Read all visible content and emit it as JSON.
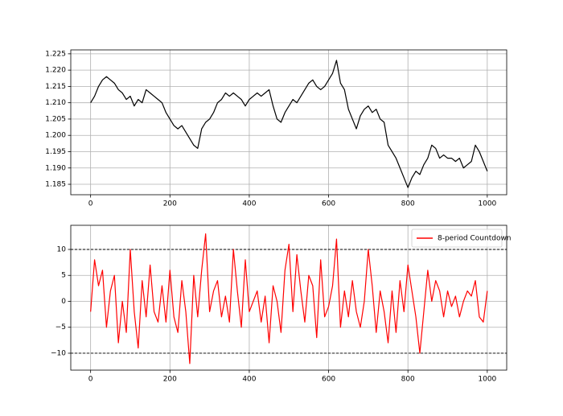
{
  "chart_data": [
    {
      "type": "line",
      "x": [
        0,
        10,
        20,
        30,
        40,
        50,
        60,
        70,
        80,
        90,
        100,
        110,
        120,
        130,
        140,
        150,
        160,
        170,
        180,
        190,
        200,
        210,
        220,
        230,
        240,
        250,
        260,
        270,
        280,
        290,
        300,
        310,
        320,
        330,
        340,
        350,
        360,
        370,
        380,
        390,
        400,
        410,
        420,
        430,
        440,
        450,
        460,
        470,
        480,
        490,
        500,
        510,
        520,
        530,
        540,
        550,
        560,
        570,
        580,
        590,
        600,
        610,
        620,
        630,
        640,
        650,
        660,
        670,
        680,
        690,
        700,
        710,
        720,
        730,
        740,
        750,
        760,
        770,
        780,
        790,
        800,
        810,
        820,
        830,
        840,
        850,
        860,
        870,
        880,
        890,
        900,
        910,
        920,
        930,
        940,
        950,
        960,
        970,
        980,
        990,
        1000
      ],
      "series": [
        {
          "color": "#000000",
          "values": [
            1.21,
            1.212,
            1.215,
            1.217,
            1.218,
            1.217,
            1.216,
            1.214,
            1.213,
            1.211,
            1.212,
            1.209,
            1.211,
            1.21,
            1.214,
            1.213,
            1.212,
            1.211,
            1.21,
            1.207,
            1.205,
            1.203,
            1.202,
            1.203,
            1.201,
            1.199,
            1.197,
            1.196,
            1.202,
            1.204,
            1.205,
            1.207,
            1.21,
            1.211,
            1.213,
            1.212,
            1.213,
            1.212,
            1.211,
            1.209,
            1.211,
            1.212,
            1.213,
            1.212,
            1.213,
            1.214,
            1.209,
            1.205,
            1.204,
            1.207,
            1.209,
            1.211,
            1.21,
            1.212,
            1.214,
            1.216,
            1.217,
            1.215,
            1.214,
            1.215,
            1.217,
            1.219,
            1.223,
            1.216,
            1.214,
            1.208,
            1.205,
            1.202,
            1.206,
            1.208,
            1.209,
            1.207,
            1.208,
            1.205,
            1.204,
            1.197,
            1.195,
            1.193,
            1.19,
            1.187,
            1.184,
            1.187,
            1.189,
            1.188,
            1.191,
            1.193,
            1.197,
            1.196,
            1.193,
            1.194,
            1.193,
            1.193,
            1.192,
            1.193,
            1.19,
            1.191,
            1.192,
            1.197,
            1.195,
            1.192,
            1.189
          ]
        }
      ],
      "xlim": [
        -50,
        1049
      ],
      "xticks": [
        0,
        200,
        400,
        600,
        800,
        1000
      ],
      "ylim": [
        1.1818,
        1.2262
      ],
      "yticks": [
        1.185,
        {
          "value": 1.19,
          "label": "1.190"
        },
        1.195,
        {
          "value": 1.2,
          "label": "1.200"
        },
        1.205,
        {
          "value": 1.21,
          "label": "1.210"
        },
        1.215,
        {
          "value": 1.22,
          "label": "1.220"
        },
        1.225
      ],
      "grid": true
    },
    {
      "type": "line",
      "x": [
        0,
        10,
        20,
        30,
        40,
        50,
        60,
        70,
        80,
        90,
        100,
        110,
        120,
        130,
        140,
        150,
        160,
        170,
        180,
        190,
        200,
        210,
        220,
        230,
        240,
        250,
        260,
        270,
        280,
        290,
        300,
        310,
        320,
        330,
        340,
        350,
        360,
        370,
        380,
        390,
        400,
        410,
        420,
        430,
        440,
        450,
        460,
        470,
        480,
        490,
        500,
        510,
        520,
        530,
        540,
        550,
        560,
        570,
        580,
        590,
        600,
        610,
        620,
        630,
        640,
        650,
        660,
        670,
        680,
        690,
        700,
        710,
        720,
        730,
        740,
        750,
        760,
        770,
        780,
        790,
        800,
        810,
        820,
        830,
        840,
        850,
        860,
        870,
        880,
        890,
        900,
        910,
        920,
        930,
        940,
        950,
        960,
        970,
        980,
        990,
        1000
      ],
      "series": [
        {
          "name": "8-period Countdown",
          "color": "#ff0000",
          "values": [
            -2,
            8,
            3,
            6,
            -5,
            2,
            5,
            -8,
            0,
            -6,
            10,
            -2,
            -9,
            4,
            -3,
            7,
            -2,
            -4,
            3,
            -4,
            6,
            -3,
            -6,
            4,
            -2,
            -12,
            5,
            -3,
            6,
            13,
            -2,
            2,
            4,
            -3,
            1,
            -4,
            10,
            2,
            -5,
            8,
            -2,
            0,
            2,
            -4,
            1,
            -8,
            3,
            0,
            -6,
            6,
            11,
            -2,
            9,
            2,
            -4,
            5,
            3,
            -7,
            8,
            -3,
            -1,
            3,
            12,
            -5,
            2,
            -3,
            4,
            -2,
            -5,
            0,
            10,
            3,
            -6,
            2,
            -2,
            -8,
            2,
            -6,
            4,
            -2,
            7,
            2,
            -3,
            -10,
            -2,
            6,
            0,
            4,
            2,
            -3,
            2,
            -1,
            1,
            -3,
            0,
            2,
            1,
            4,
            -3,
            -4,
            2
          ]
        }
      ],
      "hlines": [
        10,
        -10
      ],
      "xlim": [
        -50,
        1049
      ],
      "xticks": [
        0,
        200,
        400,
        600,
        800,
        1000
      ],
      "ylim": [
        -13.26,
        14.65
      ],
      "yticks": [
        {
          "value": -10,
          "label": "−10"
        },
        {
          "value": -5,
          "label": "−5"
        },
        0,
        5,
        10
      ],
      "grid": true,
      "legend": "upper right"
    }
  ]
}
